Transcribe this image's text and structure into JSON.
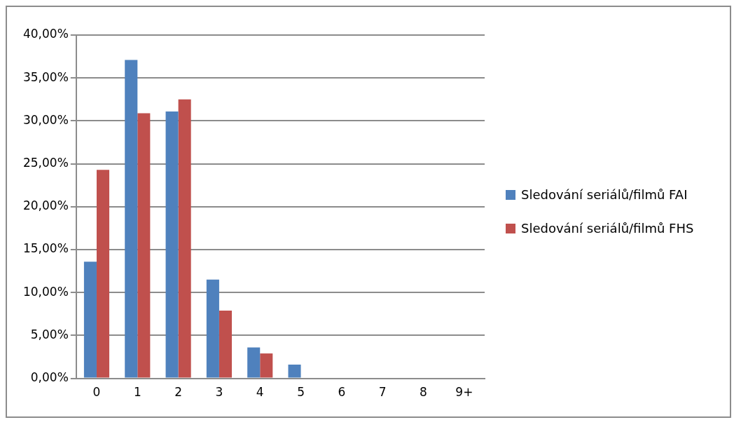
{
  "chart_data": {
    "type": "bar",
    "categories": [
      "0",
      "1",
      "2",
      "3",
      "4",
      "5",
      "6",
      "7",
      "8",
      "9+"
    ],
    "series": [
      {
        "name": "Sledování seriálů/filmů FAI",
        "color": "#4f81bd",
        "values": [
          13.6,
          37.1,
          31.1,
          11.5,
          3.6,
          1.6,
          0,
          0,
          0,
          0
        ]
      },
      {
        "name": "Sledování seriálů/filmů FHS",
        "color": "#c0504d",
        "values": [
          24.3,
          30.9,
          32.5,
          7.9,
          2.9,
          0,
          0,
          0,
          0,
          0
        ]
      }
    ],
    "ylim": [
      0,
      40
    ],
    "yticks": [
      {
        "value": 0,
        "label": "0,00%"
      },
      {
        "value": 5,
        "label": "5,00%"
      },
      {
        "value": 10,
        "label": "10,00%"
      },
      {
        "value": 15,
        "label": "15,00%"
      },
      {
        "value": 20,
        "label": "20,00%"
      },
      {
        "value": 25,
        "label": "25,00%"
      },
      {
        "value": 30,
        "label": "30,00%"
      },
      {
        "value": 35,
        "label": "35,00%"
      },
      {
        "value": 40,
        "label": "40,00%"
      }
    ],
    "grid": "y",
    "legend": "right"
  }
}
